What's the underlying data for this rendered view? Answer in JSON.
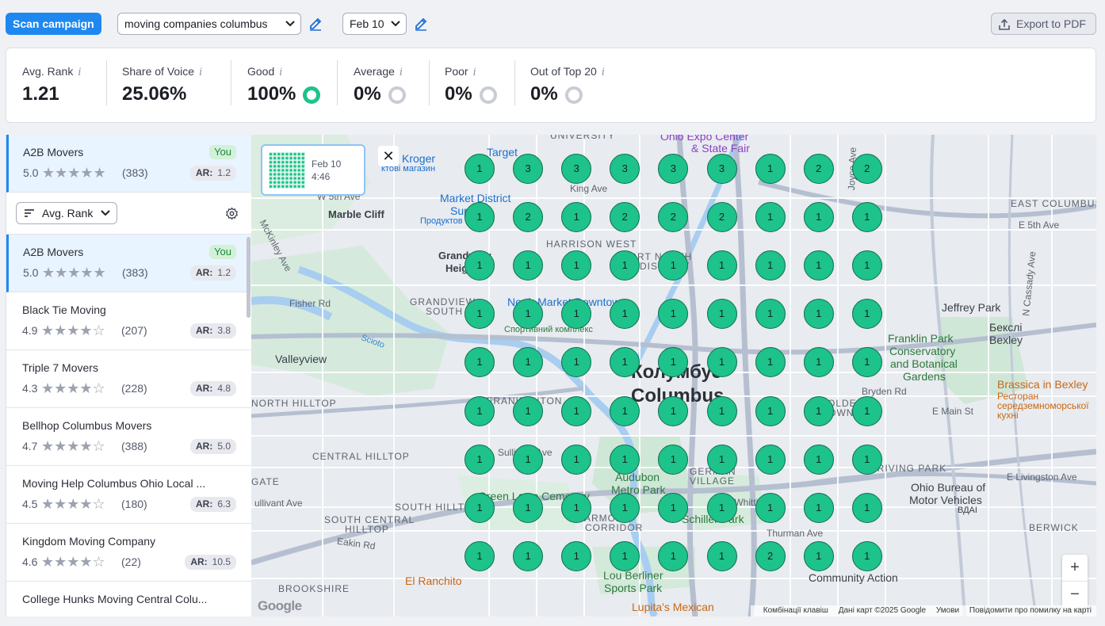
{
  "toolbar": {
    "scan_label": "Scan campaign",
    "keyword": "moving companies columbus",
    "date": "Feb 10",
    "export_label": "Export to PDF"
  },
  "stats": [
    {
      "label": "Avg. Rank",
      "value": "1.21"
    },
    {
      "label": "Share of Voice",
      "value": "25.06%"
    },
    {
      "label": "Good",
      "value": "100%",
      "ring": "#1ec28b"
    },
    {
      "label": "Average",
      "value": "0%",
      "ring": "#c9ccd4"
    },
    {
      "label": "Poor",
      "value": "0%",
      "ring": "#c9ccd4"
    },
    {
      "label": "Out of Top 20",
      "value": "0%",
      "ring": "#c9ccd4"
    }
  ],
  "you_business": {
    "name": "A2B Movers",
    "rating": "5.0",
    "reviews": "(383)",
    "ar": "1.2",
    "badge": "You",
    "ar_label": "AR:"
  },
  "sort": {
    "label": "Avg. Rank"
  },
  "competitors": [
    {
      "name": "A2B Movers",
      "rating": "5.0",
      "stars": "★★★★★",
      "reviews": "(383)",
      "ar": "1.2",
      "you": true
    },
    {
      "name": "Black Tie Moving",
      "rating": "4.9",
      "stars": "★★★★☆",
      "reviews": "(207)",
      "ar": "3.8"
    },
    {
      "name": "Triple 7 Movers",
      "rating": "4.3",
      "stars": "★★★★☆",
      "reviews": "(228)",
      "ar": "4.8"
    },
    {
      "name": "Bellhop Columbus Movers",
      "rating": "4.7",
      "stars": "★★★★☆",
      "reviews": "(388)",
      "ar": "5.0"
    },
    {
      "name": "Moving Help Columbus Ohio Local ...",
      "rating": "4.5",
      "stars": "★★★★☆",
      "reviews": "(180)",
      "ar": "6.3"
    },
    {
      "name": "Kingdom Moving Company",
      "rating": "4.6",
      "stars": "★★★★☆",
      "reviews": "(22)",
      "ar": "10.5"
    },
    {
      "name": "College Hunks Moving Central Colu...",
      "rating": "",
      "stars": "",
      "reviews": "",
      "ar": ""
    }
  ],
  "map": {
    "thumb_date": "Feb 10",
    "thumb_time": "4:46",
    "grid_ranks": [
      [
        "1",
        "3",
        "3",
        "3",
        "3",
        "3",
        "1",
        "2",
        "2"
      ],
      [
        "1",
        "2",
        "1",
        "2",
        "2",
        "2",
        "1",
        "1",
        "1"
      ],
      [
        "1",
        "1",
        "1",
        "1",
        "1",
        "1",
        "1",
        "1",
        "1"
      ],
      [
        "1",
        "1",
        "1",
        "1",
        "1",
        "1",
        "1",
        "1",
        "1"
      ],
      [
        "1",
        "1",
        "1",
        "1",
        "1",
        "1",
        "1",
        "1",
        "1"
      ],
      [
        "1",
        "1",
        "1",
        "1",
        "1",
        "1",
        "1",
        "1",
        "1"
      ],
      [
        "1",
        "1",
        "1",
        "1",
        "1",
        "1",
        "1",
        "1",
        "1"
      ],
      [
        "1",
        "1",
        "1",
        "1",
        "1",
        "1",
        "1",
        "1",
        "1"
      ],
      [
        "1",
        "1",
        "1",
        "1",
        "1",
        "1",
        "2",
        "1",
        "1"
      ]
    ],
    "labels": {
      "marble_cliff": "Marble Cliff",
      "grandview": "Grandview",
      "grandview2": "Heig",
      "grandview_south": "GRANDVIEW",
      "grandview_south2": "SOUTH",
      "valleyview": "Valleyview",
      "north_hilltop": "NORTH HILLTOP",
      "central_hilltop": "CENTRAL HILLTOP",
      "south_hilltop": "SOUTH HILLT",
      "south_central_hilltop": "SOUTH CENTRAL",
      "south_central_hilltop2": "HILLTOP",
      "brookshire": "BROOKSHIRE",
      "harrison_west": "HARRISON WEST",
      "east_columbus": "EAST COLUMBUS",
      "driving_park": "DRIVING PARK",
      "berwick": "BERWICK",
      "german_village": "GERMAN",
      "german_village2": "VILLAGE",
      "city_uk": "Колумбус",
      "city_en": "Columbus",
      "jeffrey_park": "Jeffrey Park",
      "bexley_uk": "Бекслі",
      "bexley_en": "Bexley",
      "franklin_park": "Franklin Park",
      "franklin_park2": "Conservatory",
      "franklin_park3": "and Botanical",
      "franklin_park4": "Gardens",
      "brassica": "Brassica in Bexley",
      "brassica2": "Ресторан",
      "brassica3": "середземноморської",
      "brassica4": "кухні",
      "kroger": "Kroger",
      "kroger2": "ктові магазин",
      "target": "Target",
      "market_district": "Market District",
      "market_district2": "Super",
      "market_district3": "Продуктов",
      "north_market": "North Market Downtown",
      "ohio_expo": "Ohio Expo Center",
      "ohio_expo2": "& State Fair",
      "ohio_bmv": "Ohio Bureau of",
      "ohio_bmv2": "Motor Vehicles",
      "ohio_bmv3": "ВДАІ",
      "el_ranchito": "El Ranchito",
      "lou_berliner": "Lou Berliner",
      "lou_berliner2": "Sports Park",
      "lupitas": "Lupita's Mexican",
      "community_action": "Community Action",
      "schiller": "Schiller Park",
      "audubon": "Audubon",
      "audubon2": "Metro Park",
      "green_lawn": "Green Lawn Cemetery",
      "university": "UNIVERSITY",
      "king_ave": "King Ave",
      "w5th": "W 5th Ave",
      "fisher_rd": "Fisher Rd",
      "mckinley": "McKinley Ave",
      "sullivant": "Sullivant Ave",
      "eakin": "Eakin Rd",
      "bryden": "Bryden Rd",
      "e_main": "E Main St",
      "e_livingston": "E Livingston Ave",
      "e5th": "E 5th Ave",
      "n_cassady": "N Cassady Ave",
      "thurman": "Thurman Ave",
      "joyce": "Joyce Ave",
      "whittier": "E Whittier St",
      "olde_towne": "OLDE",
      "olde_towne2": "TOWNE",
      "sportivny": "Спортивний комплекс",
      "short_north": "SHORT NORTH",
      "short_north2": "DISTRICT",
      "armond": "ARMOND",
      "corridor": "CORRIDOR",
      "scioto": "Scioto",
      "franklinton": "FRANKLINTON",
      "gate": "GATE",
      "ullivant": "ullivant Ave"
    },
    "attribution": {
      "keys": "Комбінації клавіш",
      "data": "Дані карт ©2025 Google",
      "terms": "Умови",
      "report": "Повідомити про помилку на карті"
    },
    "google": "Google",
    "zoom_in": "+",
    "zoom_out": "−"
  },
  "colors": {
    "accent": "#1e88f0",
    "good": "#1ec28b"
  }
}
